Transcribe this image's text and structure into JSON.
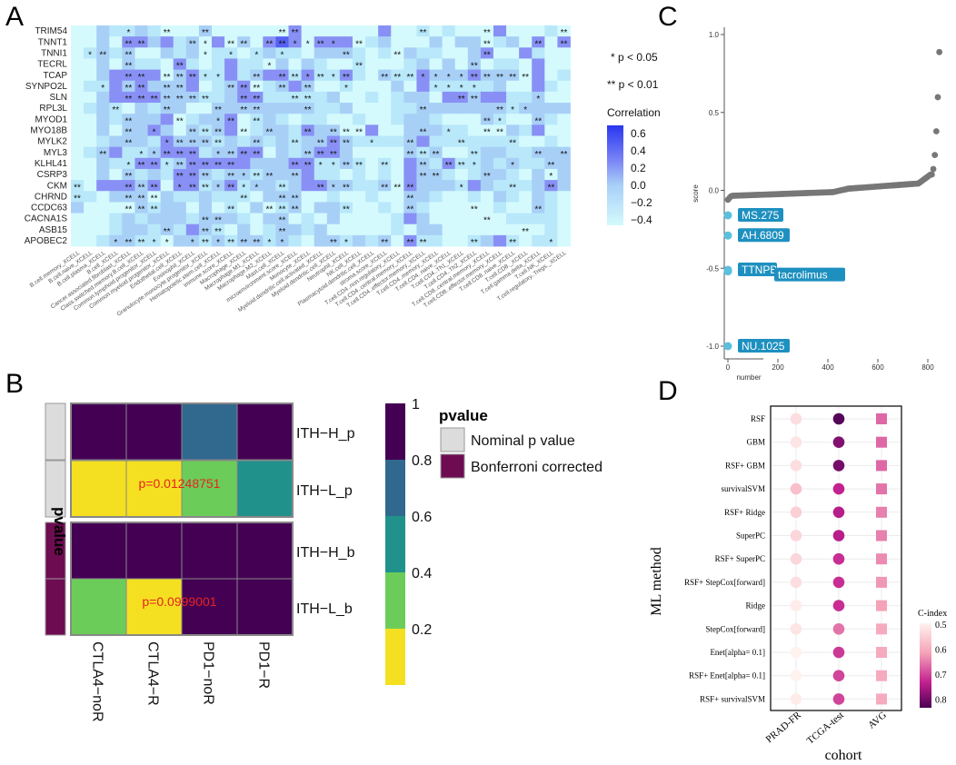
{
  "panel_labels": [
    "A",
    "B",
    "C",
    "D"
  ],
  "chart_data": [
    {
      "id": "A",
      "type": "heatmap",
      "title": "",
      "rows": [
        "TRIM54",
        "TNNT1",
        "TNNI1",
        "TECRL",
        "TCAP",
        "SYNPO2L",
        "SLN",
        "RPL3L",
        "MYOD1",
        "MYO18B",
        "MYLK2",
        "MYL3",
        "KLHL41",
        "CSRP3",
        "CKM",
        "CHRND",
        "CCDC63",
        "CACNA1S",
        "ASB15",
        "APOBEC2"
      ],
      "columns": [
        "B.cell.memory_XCELL",
        "B.cell.naive_XCELL",
        "B.cell.plasma_XCELL",
        "B.cell_XCELL",
        "Cancer.associated.fibroblast_XCELL",
        "Class.switched.memory.B.cell_XCELL",
        "Common.lymphoid.progenitor_XCELL",
        "Common.myeloid.progenitor_XCELL",
        "Endothelial.cell_XCELL",
        "Eosinophil_XCELL",
        "Granulocyte.monocyte.progenitor_XCELL",
        "Hematopoietic.stem.cell_XCELL",
        "immune.score_XCELL",
        "Macrophage_XCELL",
        "Macrophage.M1_XCELL",
        "Macrophage.M2_XCELL",
        "Mast.cell_XCELL",
        "microenvironment.score_XCELL",
        "Monocyte_XCELL",
        "Myeloid.dendritic.cell.activated_XCELL",
        "Myeloid.dendritic.cell_XCELL",
        "Neutrophil_XCELL",
        "NK.cell_XCELL",
        "Plasmacytoid.dendritic.cell_XCELL",
        "stroma.score_XCELL",
        "T.cell.CD4..non.regulatory_XCELL",
        "T.cell.CD4..central.memory_XCELL",
        "T.cell.CD4..effector.memory_XCELL",
        "T.cell.CD4..memory_XCELL",
        "T.cell.CD4..naive_XCELL",
        "T.cell.CD4..Th1_XCELL",
        "T.cell.CD4..Th2_XCELL",
        "T.cell.CD8..central.memory_XCELL",
        "T.cell.CD8..effector.memory_XCELL",
        "T.cell.CD8..naive_XCELL",
        "T.cell.CD8._XCELL",
        "T.cell.gamma.delta_XCELL",
        "T.cell.NK_XCELL",
        "T.cell.regulatory..Tregs._XCELL"
      ],
      "value_pattern": [
        "0021121000200000030000003001010003000100",
        "0020332312030203430333012000202201203030",
        "0121200212011012110222101021100230031001",
        "0020211031013110202100100012020201103000",
        "0023333023113123313113102113222322203013",
        "0113232223012301232001000203111112003101",
        "0023333222112331111120010122033233112003",
        "0121021220022222222112000112222222122220",
        "0021222301223012101100100122100021002100",
        "0020223202123012213220030022211000213001",
        "0012221322212121212232111123111111100101",
        "0123112333122330212332000021200122112221",
        "0021133123333322233112101032131121211223",
        "0020212133212212223110101032210122102021",
        "1033323033123122123322112032221321112322",
        "1102220211211102220010010022100102102100",
        "2000021220201020120221001021000001002101",
        "0001212221222102201020000132000000111100",
        "0001221213210201221200000102200000000100",
        "0012211022121221210221212031100123101100"
      ],
      "star_pattern": [
        "0000100200200000220000000002000020000020",
        "0000220002102202211210200000000020002020",
        "0120200000101010100002000200000020000001",
        "0000200020000001000000200000000200000000",
        "0000220222110020221212002221111222220002",
        "0010220220002220202001000000111100000000",
        "0000222222200220022000000000002200001000",
        "0002000200020220002000000002000002110000",
        "0000200020012020000000000000000021002000",
        "0000201002220202002022200002010022000000",
        "0000200122220020020222010020002000200000",
        "0020011222012220002220000022200200002020",
        "0000122122222000022112202002022100100200",
        "0000200022202122020000000002200020000100",
        "2000222012212110200212002220001000200200",
        "2000222000000200220000000020000000000000",
        "0000222000002002220002000020000200002000",
        "0000000000220000200000000000000020000000",
        "0000000200220000200000000000000000020000",
        "0001221101212221100021002022000200200100"
      ],
      "legend": {
        "title": "Correlation",
        "ticks": [
          "0.6",
          "0.4",
          "0.2",
          "0.0",
          "−0.2",
          "−0.4"
        ],
        "colors": [
          "#2a36f0",
          "#5560f3",
          "#8890f5",
          "#a8d0f7",
          "#b8e8fa",
          "#d4fafd"
        ]
      },
      "annotations": [
        "* p < 0.05",
        "** p < 0.01"
      ],
      "star_symbols": [
        "",
        "*",
        "**"
      ]
    },
    {
      "id": "B",
      "type": "heatmap",
      "rows": [
        "ITH−H_p",
        "ITH−L_p",
        "ITH−H_b",
        "ITH−L_b"
      ],
      "columns": [
        "CTLA4−noR",
        "CTLA4−R",
        "PD1−noR",
        "PD1−R"
      ],
      "values": [
        [
          1,
          1,
          0.8,
          1
        ],
        [
          0.2,
          0.2,
          0.4,
          0.6
        ],
        [
          1,
          1,
          1,
          1
        ],
        [
          0.4,
          0.2,
          1,
          1
        ]
      ],
      "cell_labels": [
        {
          "row": 1,
          "col": 1,
          "text": "p=0.01248751"
        },
        {
          "row": 3,
          "col": 1,
          "text": "p=0.0999001"
        }
      ],
      "row_groups": [
        {
          "group": "Nominal p value",
          "color": "#dcdcdc"
        },
        {
          "group": "Nominal p value",
          "color": "#dcdcdc"
        },
        {
          "group": "Bonferroni corrected",
          "color": "#6e0c52"
        },
        {
          "group": "Bonferroni corrected",
          "color": "#6e0c52"
        }
      ],
      "annotation_axis_label": "pvalue",
      "colorbar": {
        "ticks": [
          "1",
          "0.8",
          "0.6",
          "0.4",
          "0.2"
        ],
        "colors": [
          "#440154",
          "#31688e",
          "#21918c",
          "#6ccc59",
          "#f4e020"
        ]
      },
      "legend": {
        "title": "pvalue",
        "items": [
          {
            "label": "Nominal p value",
            "color": "#dcdcdc"
          },
          {
            "label": "Bonferroni corrected",
            "color": "#6e0c52"
          }
        ]
      }
    },
    {
      "id": "C",
      "type": "scatter",
      "xlabel": "number",
      "ylabel": "score",
      "xlim": [
        0,
        850
      ],
      "ylim": [
        -1.0,
        1.0
      ],
      "xticks": [
        0,
        200,
        400,
        600,
        800
      ],
      "yticks": [
        -1.0,
        -0.5,
        0.0,
        0.5,
        1.0
      ],
      "series_description": "848 sorted scores",
      "highlighted": [
        {
          "label": "MS.275",
          "x": 1,
          "y": -0.16
        },
        {
          "label": "AH.6809",
          "x": 2,
          "y": -0.29
        },
        {
          "label": "TTNPB",
          "x": 3,
          "y": -0.51
        },
        {
          "label": "tacrolimus",
          "x": 4,
          "y": -0.52
        },
        {
          "label": "NU.1025",
          "x": 5,
          "y": -1.0
        }
      ],
      "color_normal": "#777777",
      "color_highlight": "#5bc0de",
      "label_bg": "#1e90c0"
    },
    {
      "id": "D",
      "type": "heatmap",
      "ylabel": "ML method",
      "xlabel": "cohort",
      "rows": [
        "RSF",
        "GBM",
        "RSF+ GBM",
        "survivalSVM",
        "RSF+ Ridge",
        "SuperPC",
        "RSF+ SuperPC",
        "RSF+ StepCox[forward]",
        "Ridge",
        "StepCox[forward]",
        "Enet[alpha= 0.1]",
        "RSF+ Enet[alpha= 0.1]",
        "RSF+ survivalSVM"
      ],
      "columns": [
        "PRAD-FR",
        "TCGA-test",
        "AVG"
      ],
      "values": [
        [
          0.53,
          0.82,
          0.66
        ],
        [
          0.52,
          0.78,
          0.66
        ],
        [
          0.53,
          0.79,
          0.66
        ],
        [
          0.57,
          0.72,
          0.65
        ],
        [
          0.55,
          0.73,
          0.64
        ],
        [
          0.54,
          0.73,
          0.64
        ],
        [
          0.54,
          0.71,
          0.63
        ],
        [
          0.53,
          0.71,
          0.62
        ],
        [
          0.51,
          0.71,
          0.61
        ],
        [
          0.52,
          0.65,
          0.6
        ],
        [
          0.5,
          0.7,
          0.6
        ],
        [
          0.5,
          0.69,
          0.6
        ],
        [
          0.51,
          0.69,
          0.6
        ]
      ],
      "markers": [
        "circle",
        "circle",
        "square"
      ],
      "legend": {
        "title": "C-index",
        "ticks": [
          "0.5",
          "0.6",
          "0.7",
          "0.8"
        ],
        "range": [
          0.5,
          0.83
        ]
      }
    }
  ]
}
